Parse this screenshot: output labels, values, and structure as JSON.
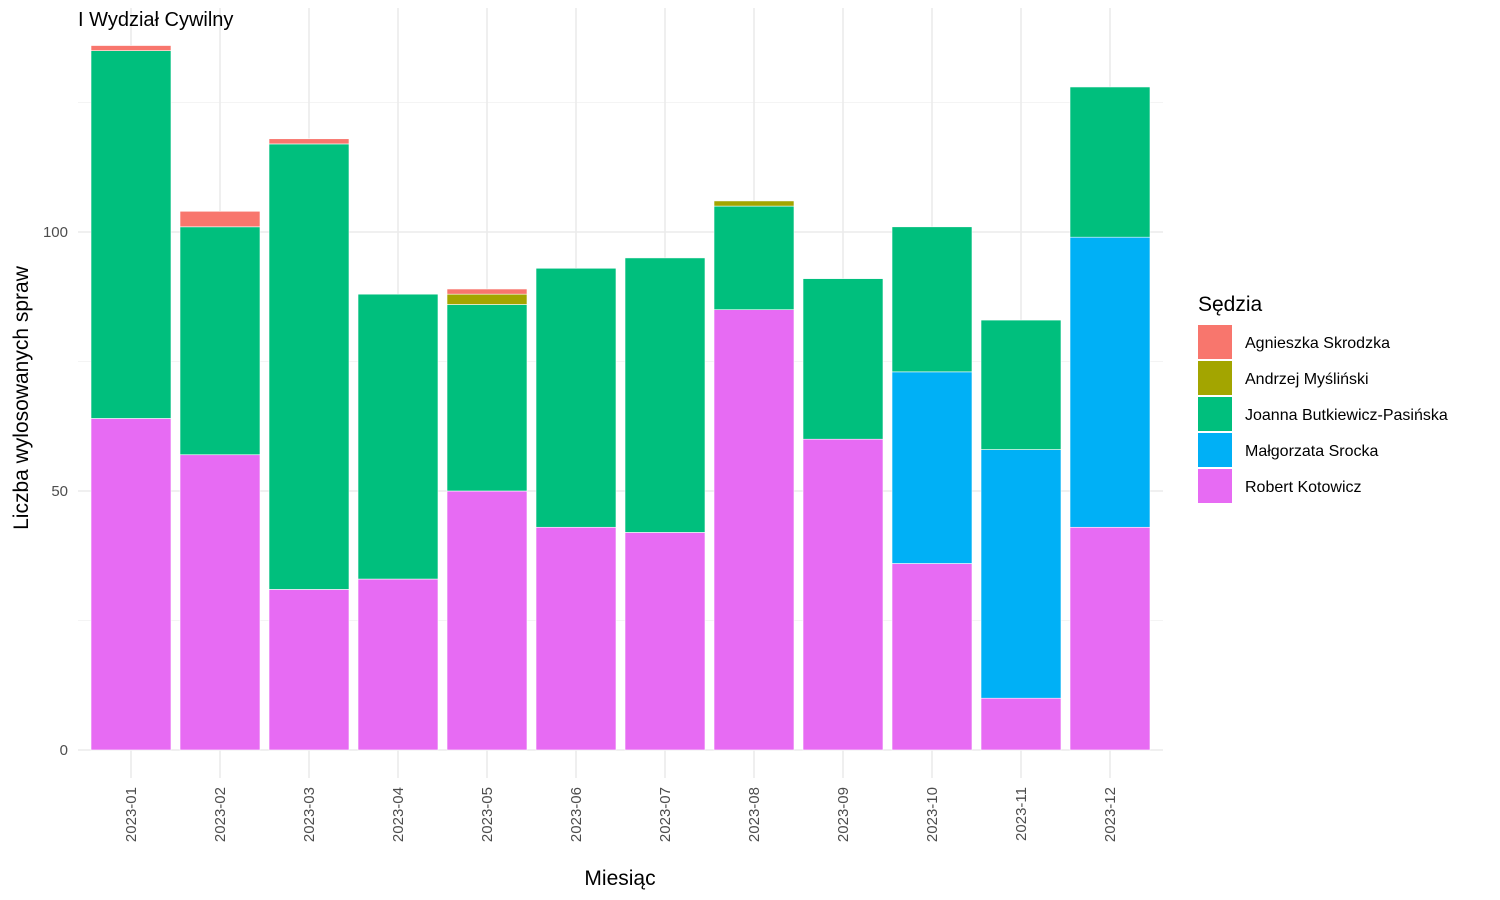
{
  "chart_data": {
    "type": "bar",
    "stacked": true,
    "title": "I Wydział Cywilny",
    "xlabel": "Miesiąc",
    "ylabel": "Liczba wylosowanych spraw",
    "ylim": [
      0,
      140
    ],
    "yticks": [
      0,
      50,
      100
    ],
    "grid": true,
    "legend": {
      "title": "Sędzia",
      "position": "right"
    },
    "categories": [
      "2023-01",
      "2023-02",
      "2023-03",
      "2023-04",
      "2023-05",
      "2023-06",
      "2023-07",
      "2023-08",
      "2023-09",
      "2023-10",
      "2023-11",
      "2023-12"
    ],
    "series": [
      {
        "name": "Robert Kotowicz",
        "color": "#E76BF3",
        "values": [
          64,
          57,
          31,
          33,
          50,
          43,
          42,
          85,
          60,
          36,
          10,
          43
        ]
      },
      {
        "name": "Małgorzata Srocka",
        "color": "#00B0F6",
        "values": [
          0,
          0,
          0,
          0,
          0,
          0,
          0,
          0,
          0,
          37,
          48,
          56
        ]
      },
      {
        "name": "Joanna Butkiewicz-Pasińska",
        "color": "#00BF7D",
        "values": [
          71,
          44,
          86,
          55,
          36,
          50,
          53,
          20,
          31,
          28,
          25,
          29
        ]
      },
      {
        "name": "Andrzej Myśliński",
        "color": "#A3A500",
        "values": [
          0,
          0,
          0,
          0,
          2,
          0,
          0,
          1,
          0,
          0,
          0,
          0
        ]
      },
      {
        "name": "Agnieszka Skrodzka",
        "color": "#F8766D",
        "values": [
          1,
          3,
          1,
          0,
          1,
          0,
          0,
          0,
          0,
          0,
          0,
          0
        ]
      }
    ],
    "legend_order": [
      "Agnieszka Skrodzka",
      "Andrzej Myśliński",
      "Joanna Butkiewicz-Pasińska",
      "Małgorzata Srocka",
      "Robert Kotowicz"
    ]
  }
}
